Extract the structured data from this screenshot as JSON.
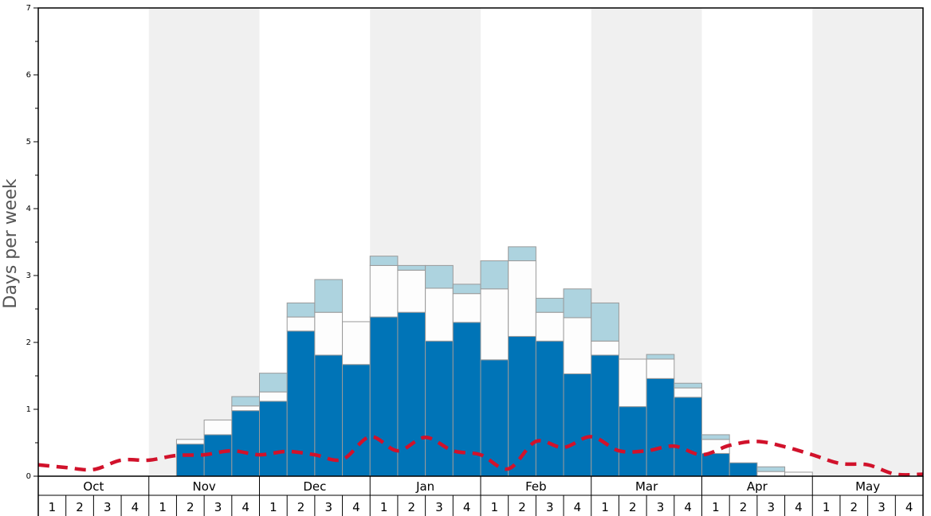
{
  "chart_data": {
    "type": "bar",
    "ylabel": "Days per week",
    "ylim": [
      0,
      7
    ],
    "yticks": [
      "0",
      "1",
      "2",
      "3",
      "4",
      "5",
      "6",
      "7"
    ],
    "months": [
      "Oct",
      "Nov",
      "Dec",
      "Jan",
      "Feb",
      "Mar",
      "Apr",
      "May"
    ],
    "weeks": [
      "1",
      "2",
      "3",
      "4"
    ],
    "stacked": true,
    "colors": {
      "dark": "#0074b7",
      "white": "#fdfdfd",
      "light": "#add3df",
      "line": "#d1122b",
      "band": "#f0f0f0"
    },
    "series": [
      {
        "color_key": "dark",
        "values": [
          0,
          0,
          0,
          0,
          0,
          0.48,
          0.62,
          0.98,
          1.12,
          2.17,
          1.81,
          1.67,
          2.38,
          2.45,
          2.02,
          2.3,
          1.74,
          2.09,
          2.02,
          1.53,
          1.81,
          1.04,
          1.46,
          1.18,
          0.34,
          0.2,
          0,
          0,
          0,
          0,
          0,
          0
        ]
      },
      {
        "color_key": "white",
        "values": [
          0,
          0,
          0,
          0,
          0,
          0.07,
          0.22,
          0.07,
          0.14,
          0.21,
          0.64,
          0.64,
          0.77,
          0.63,
          0.79,
          0.43,
          1.06,
          1.13,
          0.43,
          0.84,
          0.21,
          0.71,
          0.29,
          0.14,
          0.21,
          0,
          0.07,
          0.06,
          0,
          0,
          0,
          0
        ]
      },
      {
        "color_key": "light",
        "values": [
          0,
          0,
          0,
          0,
          0,
          0,
          0,
          0.14,
          0.28,
          0.21,
          0.49,
          0,
          0.14,
          0.07,
          0.34,
          0.14,
          0.42,
          0.21,
          0.21,
          0.43,
          0.57,
          0,
          0.07,
          0.07,
          0.07,
          0,
          0.07,
          0,
          0,
          0,
          0,
          0
        ]
      }
    ],
    "line": {
      "style": "dashed",
      "color_key": "line",
      "values": [
        0.17,
        0.13,
        0.1,
        0.24,
        0.24,
        0.31,
        0.32,
        0.38,
        0.32,
        0.37,
        0.32,
        0.25,
        0.59,
        0.38,
        0.58,
        0.38,
        0.32,
        0.11,
        0.52,
        0.43,
        0.59,
        0.38,
        0.38,
        0.45,
        0.32,
        0.46,
        0.52,
        0.44,
        0.32,
        0.19,
        0.17,
        0.03,
        0.03
      ]
    }
  }
}
